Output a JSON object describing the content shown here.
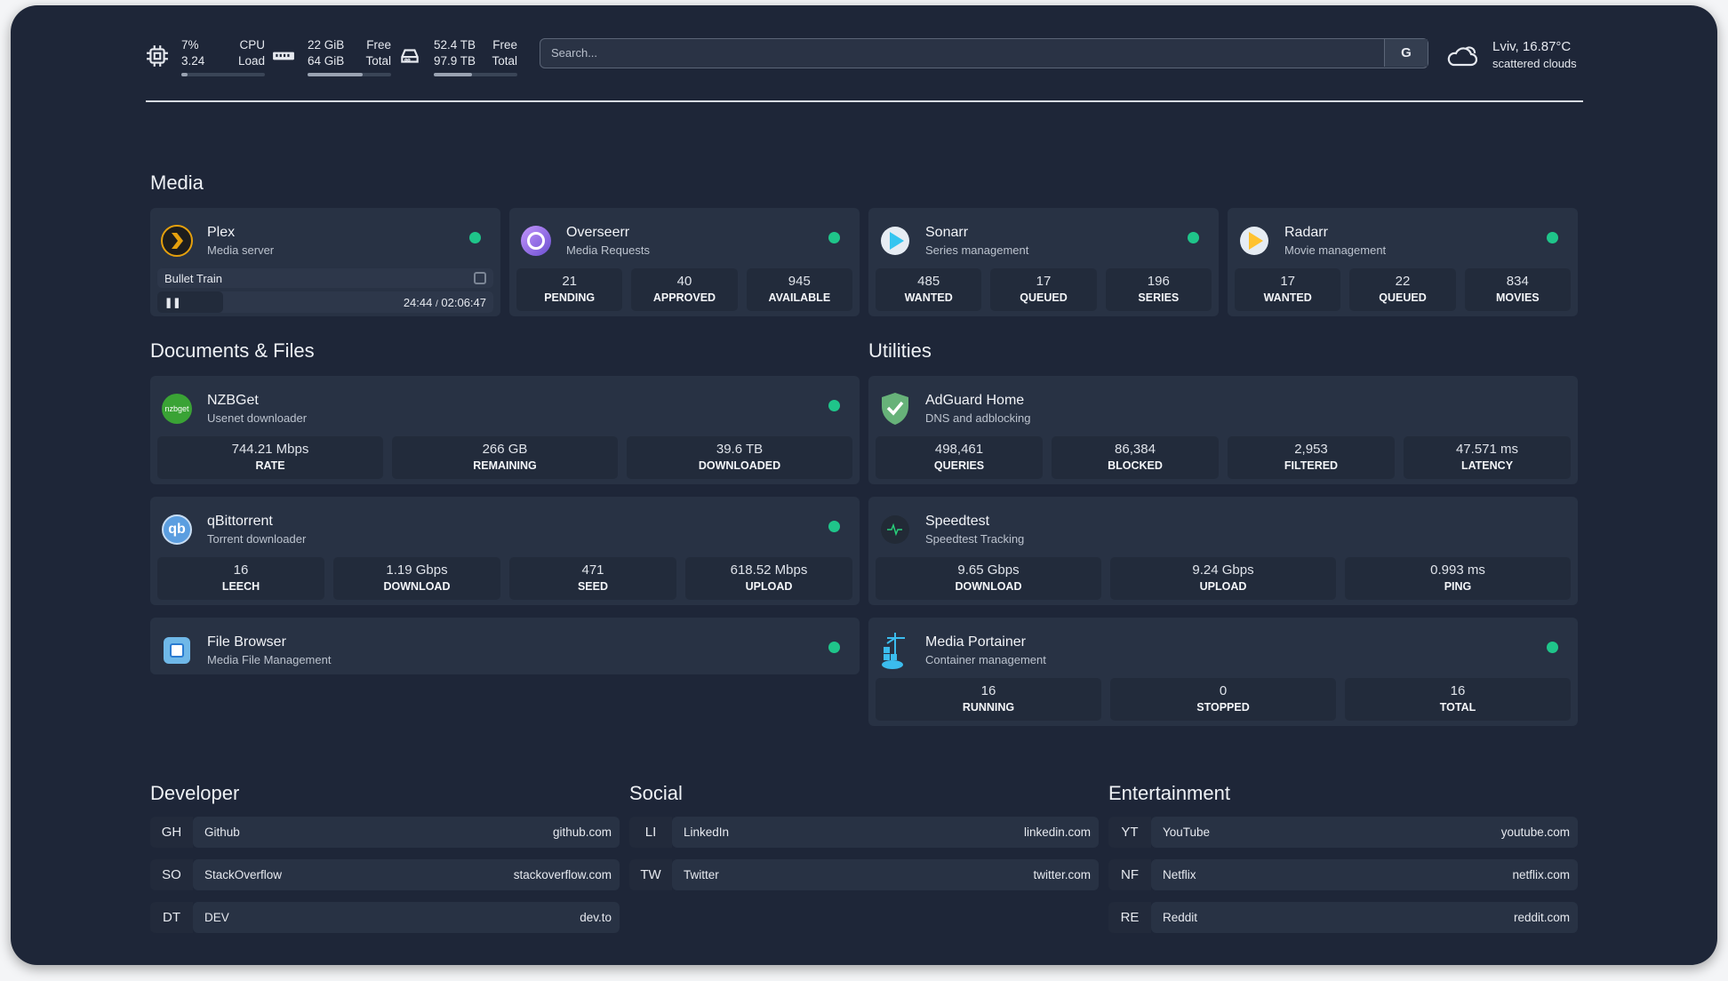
{
  "topbar": {
    "cpu": {
      "icon": "cpu-icon",
      "value1": "7%",
      "value2": "3.24",
      "label1": "CPU",
      "label2": "Load",
      "percent": 7
    },
    "memory": {
      "icon": "memory-icon",
      "value1": "22 GiB",
      "value2": "64 GiB",
      "label1": "Free",
      "label2": "Total",
      "percent": 66
    },
    "disk": {
      "icon": "disk-icon",
      "value1": "52.4 TB",
      "value2": "97.9 TB",
      "label1": "Free",
      "label2": "Total",
      "percent": 46
    },
    "search": {
      "placeholder": "Search...",
      "button": "G"
    },
    "weather": {
      "icon": "cloud-sun-icon",
      "location_temp": "Lviv, 16.87°C",
      "condition": "scattered clouds"
    }
  },
  "colors": {
    "background": "#1e2638",
    "card": "#283244",
    "stat": "#222b3b",
    "status_ok": "#1fc58a"
  },
  "sections": {
    "media": "Media",
    "documents": "Documents & Files",
    "utilities": "Utilities",
    "developer": "Developer",
    "social": "Social",
    "entertainment": "Entertainment"
  },
  "plex": {
    "title": "Plex",
    "subtitle": "Media server",
    "icon": "plex-icon",
    "now_playing": "Bullet Train",
    "position": "24:44",
    "separator": "/",
    "duration": "02:06:47",
    "progress_percent": 19.5
  },
  "media_cards": [
    {
      "title": "Overseerr",
      "subtitle": "Media Requests",
      "icon": "overseerr-icon",
      "stats": [
        {
          "v": "21",
          "l": "PENDING"
        },
        {
          "v": "40",
          "l": "APPROVED"
        },
        {
          "v": "945",
          "l": "AVAILABLE"
        }
      ]
    },
    {
      "title": "Sonarr",
      "subtitle": "Series management",
      "icon": "sonarr-icon",
      "stats": [
        {
          "v": "485",
          "l": "WANTED"
        },
        {
          "v": "17",
          "l": "QUEUED"
        },
        {
          "v": "196",
          "l": "SERIES"
        }
      ]
    },
    {
      "title": "Radarr",
      "subtitle": "Movie management",
      "icon": "radarr-icon",
      "stats": [
        {
          "v": "17",
          "l": "WANTED"
        },
        {
          "v": "22",
          "l": "QUEUED"
        },
        {
          "v": "834",
          "l": "MOVIES"
        }
      ]
    }
  ],
  "documents_cards": [
    {
      "title": "NZBGet",
      "subtitle": "Usenet downloader",
      "icon": "nzbget-icon",
      "stats": [
        {
          "v": "744.21 Mbps",
          "l": "RATE"
        },
        {
          "v": "266 GB",
          "l": "REMAINING"
        },
        {
          "v": "39.6 TB",
          "l": "DOWNLOADED"
        }
      ]
    },
    {
      "title": "qBittorrent",
      "subtitle": "Torrent downloader",
      "icon": "qbittorrent-icon",
      "stats": [
        {
          "v": "16",
          "l": "LEECH"
        },
        {
          "v": "1.19 Gbps",
          "l": "DOWNLOAD"
        },
        {
          "v": "471",
          "l": "SEED"
        },
        {
          "v": "618.52 Mbps",
          "l": "UPLOAD"
        }
      ]
    },
    {
      "title": "File Browser",
      "subtitle": "Media File Management",
      "icon": "file-browser-icon",
      "stats": []
    }
  ],
  "utilities_cards": [
    {
      "title": "AdGuard Home",
      "subtitle": "DNS and adblocking",
      "icon": "adguard-icon",
      "status": false,
      "stats": [
        {
          "v": "498,461",
          "l": "QUERIES"
        },
        {
          "v": "86,384",
          "l": "BLOCKED"
        },
        {
          "v": "2,953",
          "l": "FILTERED"
        },
        {
          "v": "47.571 ms",
          "l": "LATENCY"
        }
      ]
    },
    {
      "title": "Speedtest",
      "subtitle": "Speedtest Tracking",
      "icon": "speedtest-icon",
      "status": false,
      "stats": [
        {
          "v": "9.65 Gbps",
          "l": "DOWNLOAD"
        },
        {
          "v": "9.24 Gbps",
          "l": "UPLOAD"
        },
        {
          "v": "0.993 ms",
          "l": "PING"
        }
      ]
    },
    {
      "title": "Media Portainer",
      "subtitle": "Container management",
      "icon": "portainer-icon",
      "status": true,
      "stats": [
        {
          "v": "16",
          "l": "RUNNING"
        },
        {
          "v": "0",
          "l": "STOPPED"
        },
        {
          "v": "16",
          "l": "TOTAL"
        }
      ]
    }
  ],
  "bookmarks": {
    "developer": [
      {
        "abbr": "GH",
        "name": "Github",
        "url": "github.com"
      },
      {
        "abbr": "SO",
        "name": "StackOverflow",
        "url": "stackoverflow.com"
      },
      {
        "abbr": "DT",
        "name": "DEV",
        "url": "dev.to"
      }
    ],
    "social": [
      {
        "abbr": "LI",
        "name": "LinkedIn",
        "url": "linkedin.com"
      },
      {
        "abbr": "TW",
        "name": "Twitter",
        "url": "twitter.com"
      }
    ],
    "entertainment": [
      {
        "abbr": "YT",
        "name": "YouTube",
        "url": "youtube.com"
      },
      {
        "abbr": "NF",
        "name": "Netflix",
        "url": "netflix.com"
      },
      {
        "abbr": "RE",
        "name": "Reddit",
        "url": "reddit.com"
      }
    ]
  }
}
